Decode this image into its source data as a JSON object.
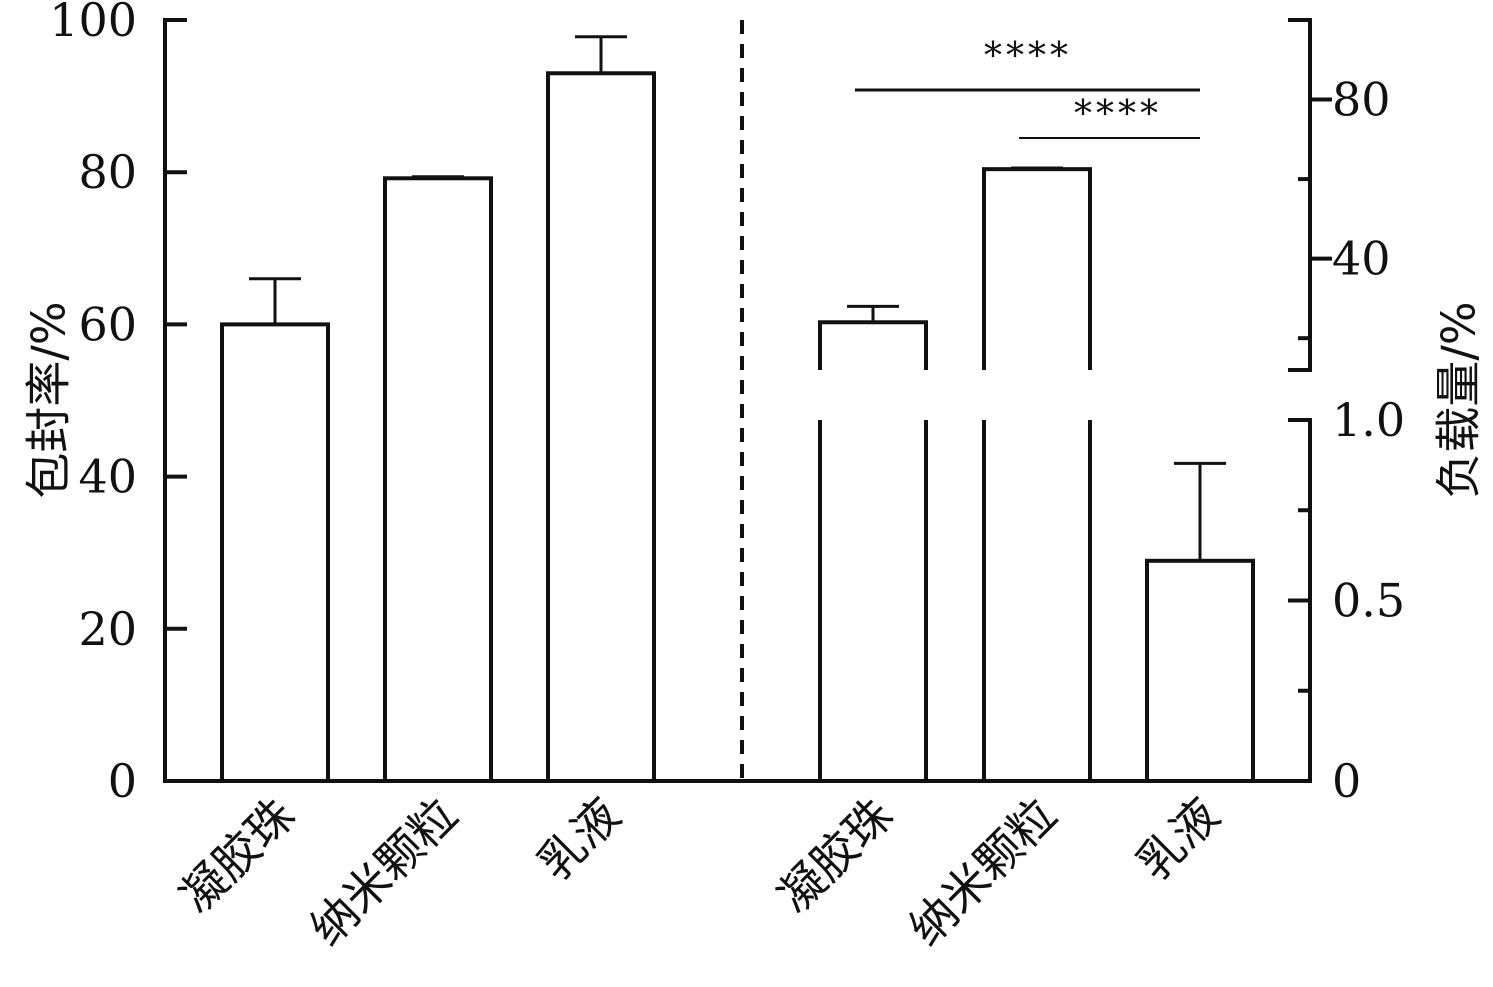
{
  "chart_data": {
    "type": "bar",
    "colors": {
      "bar_fill": "#ffffff",
      "stroke": "#111111"
    },
    "left_panel": {
      "ylabel": "包封率/%",
      "ylim": [
        0,
        100
      ],
      "yticks": [
        0,
        20,
        40,
        60,
        80,
        100
      ],
      "yticks_labels": [
        "0",
        "20",
        "40",
        "60",
        "80",
        "100"
      ],
      "categories": [
        "凝胶珠",
        "纳米颗粒",
        "乳液"
      ],
      "values": [
        60,
        79.2,
        93
      ],
      "errors": [
        6,
        0.2,
        4.8
      ]
    },
    "right_panel": {
      "ylabel": "负载量/%",
      "axis_break": true,
      "lower_ylim": [
        0,
        1.0
      ],
      "lower_yticks": [
        0,
        0.5,
        1.0
      ],
      "lower_yticks_labels": [
        "0",
        "0.5",
        "1.0"
      ],
      "upper_ylim": [
        12,
        100
      ],
      "upper_yticks": [
        40,
        80
      ],
      "upper_yticks_labels": [
        "40",
        "80"
      ],
      "categories": [
        "凝胶珠",
        "纳米颗粒",
        "乳液"
      ],
      "values": [
        24,
        62.5,
        0.61
      ],
      "errors": [
        4,
        0.3,
        0.27
      ]
    },
    "significance": [
      {
        "label": "****",
        "from": "凝胶珠",
        "to": "乳液"
      },
      {
        "label": "****",
        "from": "纳米颗粒",
        "to": "乳液"
      }
    ]
  }
}
